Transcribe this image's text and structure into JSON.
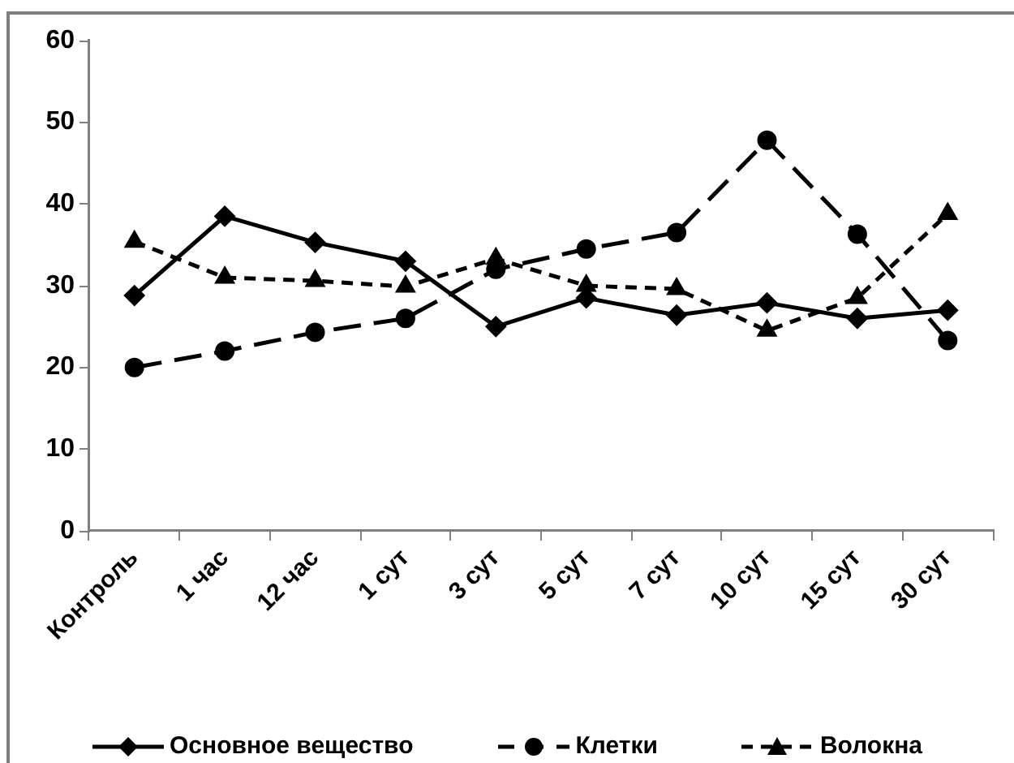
{
  "chart_data": {
    "type": "line",
    "categories": [
      "Контроль",
      "1 час",
      "12 час",
      "1 сут",
      "3 сут",
      "5 сут",
      "7 сут",
      "10 сут",
      "15 сут",
      "30 сут"
    ],
    "series": [
      {
        "name": "Основное вещество",
        "color": "#000000",
        "marker": "diamond",
        "line_style": "solid",
        "values": [
          28.8,
          38.5,
          35.3,
          33.0,
          25.0,
          28.5,
          26.4,
          27.9,
          26.0,
          27.0
        ]
      },
      {
        "name": "Клетки",
        "color": "#000000",
        "marker": "circle",
        "line_style": "dashed",
        "values": [
          20.0,
          22.0,
          24.3,
          26.0,
          32.0,
          34.5,
          36.5,
          47.8,
          36.3,
          23.3
        ]
      },
      {
        "name": "Волокна",
        "color": "#000000",
        "marker": "triangle",
        "line_style": "dashed",
        "values": [
          35.4,
          31.0,
          30.6,
          29.9,
          33.3,
          30.0,
          29.6,
          24.5,
          28.5,
          38.8
        ]
      }
    ],
    "ylim": [
      0,
      60
    ],
    "yticks": [
      0,
      10,
      20,
      30,
      40,
      50,
      60
    ],
    "grid": false,
    "legend": "bottom"
  }
}
